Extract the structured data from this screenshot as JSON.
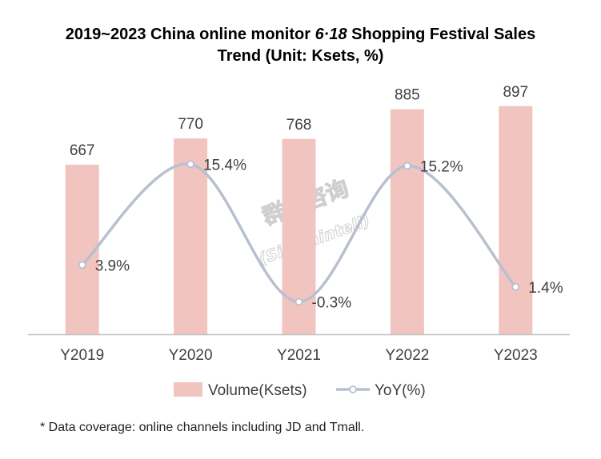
{
  "title": {
    "line1_prefix": "2019~2023 China online monitor ",
    "line1_italic": "6·18",
    "line1_suffix": "  Shopping Festival Sales",
    "line2": "Trend (Unit: Ksets, %)"
  },
  "watermark": {
    "line1": "群智咨询",
    "line2": "(Sigmaintell)"
  },
  "footnote": "* Data coverage: online channels including JD and Tmall.",
  "colors": {
    "bar": "#f2c4c0",
    "line": "#b8c0d0",
    "marker_fill": "#ffffff",
    "axis": "#bfbfbf",
    "text": "#404040",
    "watermark": "#cfcfcf"
  },
  "chart_data": {
    "type": "bar",
    "categories": [
      "Y2019",
      "Y2020",
      "Y2021",
      "Y2022",
      "Y2023"
    ],
    "series": [
      {
        "name": "Volume(Ksets)",
        "type": "bar",
        "axis": "left",
        "values": [
          667,
          770,
          768,
          885,
          897
        ],
        "labels": [
          "667",
          "770",
          "768",
          "885",
          "897"
        ]
      },
      {
        "name": "YoY(%)",
        "type": "line",
        "smooth": true,
        "axis": "right",
        "values": [
          3.9,
          15.4,
          -0.3,
          15.2,
          1.4
        ],
        "labels": [
          "3.9%",
          "15.4%",
          "-0.3%",
          "15.2%",
          "1.4%"
        ]
      }
    ],
    "ylim_left": [
      0,
      1000
    ],
    "ylim_right": [
      -4,
      25
    ],
    "grid": false,
    "legend_position": "bottom"
  }
}
